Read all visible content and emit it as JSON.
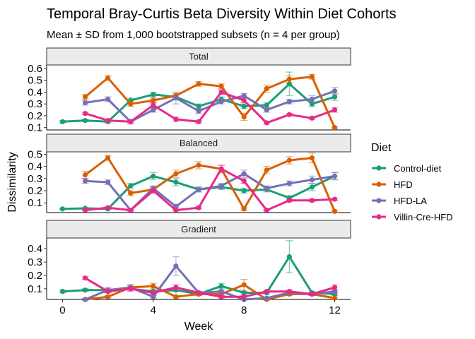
{
  "chart_data": {
    "type": "line",
    "title": "Temporal Bray-Curtis Beta Diversity Within Diet Cohorts",
    "subtitle": "Mean ± SD from 1,000 bootstrapped subsets (n = 4 per group)",
    "xlabel": "Week",
    "ylabel": "Dissimilarity",
    "x_ticks": [
      0,
      4,
      8,
      12
    ],
    "xlim": [
      -0.7,
      12.7
    ],
    "legend": {
      "title": "Diet",
      "position": "right",
      "entries": [
        "Control-diet",
        "HFD",
        "HFD-LA",
        "Villin-Cre-HFD"
      ]
    },
    "colors": {
      "Control-diet": "#1b9e77",
      "HFD": "#d95f02",
      "HFD-LA": "#7570b3",
      "Villin-Cre-HFD": "#e7298a"
    },
    "panels": [
      {
        "label": "Total",
        "ylim": [
          0.08,
          0.63
        ],
        "y_ticks": [
          "0.1",
          "0.2",
          "0.3",
          "0.4",
          "0.5",
          "0.6"
        ],
        "series": [
          {
            "name": "Control-diet",
            "x": [
              0,
              1,
              2,
              3,
              4,
              5,
              6,
              7,
              8,
              9,
              10,
              11,
              12
            ],
            "values": [
              0.15,
              0.16,
              0.15,
              0.33,
              0.38,
              0.36,
              0.28,
              0.34,
              0.28,
              0.29,
              0.47,
              0.3,
              0.36
            ],
            "sd": [
              0.01,
              0.01,
              0.01,
              0.02,
              0.02,
              0.02,
              0.02,
              0.02,
              0.02,
              0.02,
              0.1,
              0.02,
              0.03
            ]
          },
          {
            "name": "HFD",
            "x": [
              1,
              2,
              3,
              4,
              5,
              6,
              7,
              8,
              9,
              10,
              11,
              12
            ],
            "values": [
              0.36,
              0.52,
              0.3,
              0.33,
              0.37,
              0.47,
              0.45,
              0.19,
              0.43,
              0.51,
              0.53,
              0.1
            ],
            "sd": [
              0.02,
              0.02,
              0.02,
              0.02,
              0.02,
              0.02,
              0.02,
              0.03,
              0.03,
              0.03,
              0.02,
              0.01
            ]
          },
          {
            "name": "HFD-LA",
            "x": [
              1,
              2,
              3,
              4,
              5,
              6,
              7,
              8,
              9,
              10,
              11,
              12
            ],
            "values": [
              0.31,
              0.34,
              0.15,
              0.25,
              0.35,
              0.24,
              0.32,
              0.37,
              0.25,
              0.32,
              0.34,
              0.41
            ],
            "sd": [
              0.02,
              0.02,
              0.02,
              0.02,
              0.05,
              0.02,
              0.02,
              0.02,
              0.02,
              0.02,
              0.03,
              0.03
            ]
          },
          {
            "name": "Villin-Cre-HFD",
            "x": [
              1,
              2,
              3,
              4,
              5,
              6,
              7,
              8,
              9,
              10,
              11,
              12
            ],
            "values": [
              0.22,
              0.16,
              0.15,
              0.29,
              0.17,
              0.15,
              0.4,
              0.33,
              0.14,
              0.21,
              0.18,
              0.25
            ],
            "sd": [
              0.01,
              0.01,
              0.01,
              0.02,
              0.02,
              0.01,
              0.02,
              0.02,
              0.01,
              0.01,
              0.01,
              0.02
            ]
          }
        ]
      },
      {
        "label": "Balanced",
        "ylim": [
          0.02,
          0.52
        ],
        "y_ticks": [
          "0.1",
          "0.2",
          "0.3",
          "0.4",
          "0.5"
        ],
        "series": [
          {
            "name": "Control-diet",
            "x": [
              0,
              1,
              2,
              3,
              4,
              5,
              6,
              7,
              8,
              9,
              10,
              11,
              12
            ],
            "values": [
              0.05,
              0.055,
              0.05,
              0.24,
              0.32,
              0.27,
              0.21,
              0.23,
              0.2,
              0.21,
              0.14,
              0.23,
              0.32
            ],
            "sd": [
              0.005,
              0.005,
              0.005,
              0.02,
              0.03,
              0.03,
              0.02,
              0.02,
              0.02,
              0.02,
              0.02,
              0.03,
              0.03
            ]
          },
          {
            "name": "HFD",
            "x": [
              1,
              2,
              3,
              4,
              5,
              6,
              7,
              8,
              9,
              10,
              11,
              12
            ],
            "values": [
              0.33,
              0.47,
              0.18,
              0.21,
              0.34,
              0.41,
              0.38,
              0.05,
              0.37,
              0.45,
              0.47,
              0.03
            ],
            "sd": [
              0.03,
              0.02,
              0.02,
              0.02,
              0.03,
              0.03,
              0.03,
              0.01,
              0.03,
              0.03,
              0.04,
              0.01
            ]
          },
          {
            "name": "HFD-LA",
            "x": [
              1,
              2,
              3,
              4,
              5,
              6,
              7,
              8,
              9,
              10,
              11,
              12
            ],
            "values": [
              0.28,
              0.27,
              0.04,
              0.22,
              0.07,
              0.21,
              0.24,
              0.34,
              0.22,
              0.26,
              0.29,
              0.32
            ],
            "sd": [
              0.02,
              0.02,
              0.01,
              0.02,
              0.01,
              0.02,
              0.02,
              0.03,
              0.02,
              0.02,
              0.03,
              0.03
            ]
          },
          {
            "name": "Villin-Cre-HFD",
            "x": [
              1,
              2,
              3,
              4,
              5,
              6,
              7,
              8,
              9,
              10,
              11,
              12
            ],
            "values": [
              0.04,
              0.06,
              0.04,
              0.2,
              0.04,
              0.06,
              0.38,
              0.28,
              0.04,
              0.12,
              0.12,
              0.13
            ],
            "sd": [
              0.005,
              0.01,
              0.005,
              0.02,
              0.005,
              0.01,
              0.03,
              0.02,
              0.005,
              0.01,
              0.01,
              0.01
            ]
          }
        ]
      },
      {
        "label": "Gradient",
        "ylim": [
          0.02,
          0.48
        ],
        "y_ticks": [
          "0.1",
          "0.2",
          "0.3",
          "0.4"
        ],
        "series": [
          {
            "name": "Control-diet",
            "x": [
              0,
              1,
              2,
              3,
              4,
              5,
              6,
              7,
              8,
              9,
              10,
              11,
              12
            ],
            "values": [
              0.08,
              0.09,
              0.09,
              0.1,
              0.08,
              0.09,
              0.06,
              0.12,
              0.07,
              0.07,
              0.34,
              0.07,
              0.06
            ],
            "sd": [
              0.01,
              0.01,
              0.01,
              0.01,
              0.01,
              0.01,
              0.01,
              0.02,
              0.01,
              0.01,
              0.12,
              0.01,
              0.01
            ]
          },
          {
            "name": "HFD",
            "x": [
              1,
              2,
              3,
              4,
              5,
              6,
              7,
              8,
              9,
              10,
              11,
              12
            ],
            "values": [
              0.02,
              0.04,
              0.11,
              0.12,
              0.04,
              0.06,
              0.06,
              0.13,
              0.02,
              0.06,
              0.06,
              0.03
            ],
            "sd": [
              0.005,
              0.01,
              0.02,
              0.02,
              0.01,
              0.01,
              0.01,
              0.04,
              0.005,
              0.01,
              0.01,
              0.01
            ]
          },
          {
            "name": "HFD-LA",
            "x": [
              1,
              2,
              3,
              4,
              5,
              6,
              7,
              8,
              9,
              10,
              11,
              12
            ],
            "values": [
              0.02,
              0.09,
              0.11,
              0.04,
              0.27,
              0.07,
              0.08,
              0.02,
              0.03,
              0.07,
              0.06,
              0.08
            ],
            "sd": [
              0.005,
              0.02,
              0.02,
              0.01,
              0.07,
              0.01,
              0.01,
              0.005,
              0.005,
              0.01,
              0.01,
              0.01
            ]
          },
          {
            "name": "Villin-Cre-HFD",
            "x": [
              1,
              2,
              3,
              4,
              5,
              6,
              7,
              8,
              9,
              10,
              11,
              12
            ],
            "values": [
              0.18,
              0.08,
              0.1,
              0.07,
              0.11,
              0.07,
              0.04,
              0.04,
              0.08,
              0.08,
              0.06,
              0.11
            ],
            "sd": [
              0.01,
              0.01,
              0.02,
              0.01,
              0.02,
              0.01,
              0.01,
              0.01,
              0.01,
              0.01,
              0.01,
              0.02
            ]
          }
        ]
      }
    ]
  }
}
